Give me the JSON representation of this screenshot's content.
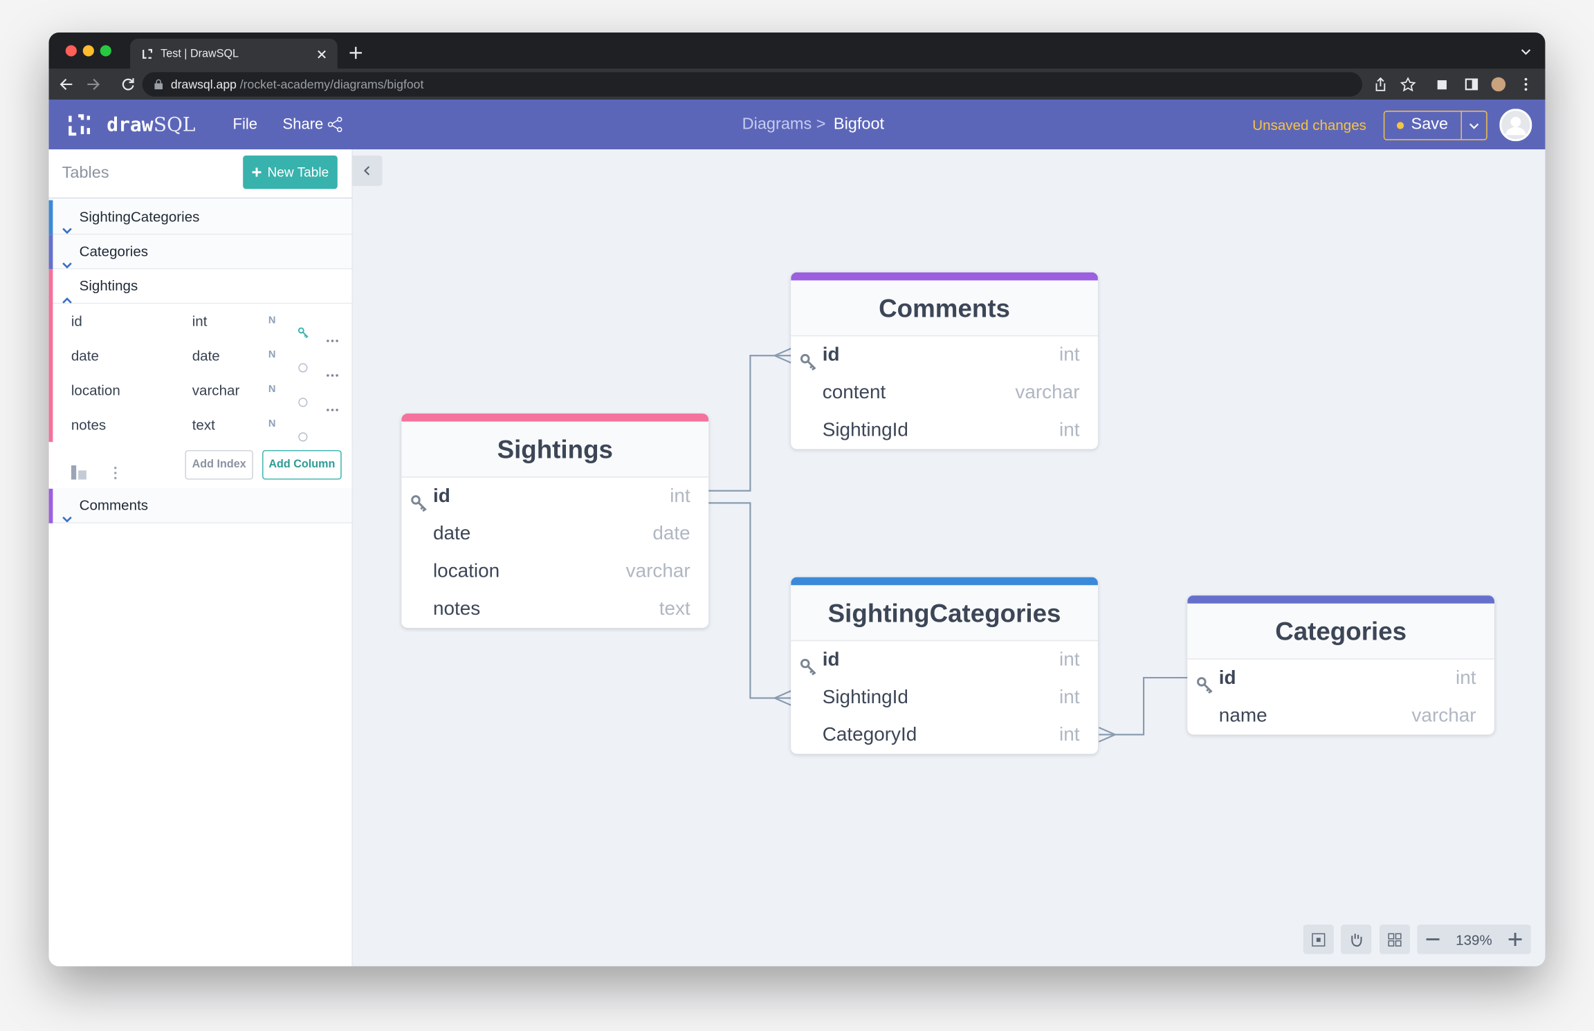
{
  "browser": {
    "tab_title": "Test | DrawSQL",
    "url_host": "drawsql.app",
    "url_path": "/rocket-academy/diagrams/bigfoot"
  },
  "app_bar": {
    "logo_bold": "draw",
    "logo_light": "SQL",
    "menu": [
      "File",
      "Share"
    ],
    "breadcrumb_parent": "Diagrams >",
    "breadcrumb_current": "Bigfoot",
    "status": "Unsaved changes",
    "save": "Save"
  },
  "sidebar": {
    "title": "Tables",
    "new_table": "New Table",
    "tables": [
      {
        "name": "SightingCategories",
        "color": "#3b8ad9",
        "expanded": false
      },
      {
        "name": "Categories",
        "color": "#6670cc",
        "expanded": false
      },
      {
        "name": "Sightings",
        "color": "#f4729c",
        "expanded": true,
        "columns": [
          {
            "name": "id",
            "type": "int",
            "nullable": "N",
            "pk": true
          },
          {
            "name": "date",
            "type": "date",
            "nullable": "N",
            "pk": false
          },
          {
            "name": "location",
            "type": "varchar",
            "nullable": "N",
            "pk": false
          },
          {
            "name": "notes",
            "type": "text",
            "nullable": "N",
            "pk": false
          }
        ],
        "add_index": "Add Index",
        "add_column": "Add Column"
      },
      {
        "name": "Comments",
        "color": "#9c5fe0",
        "expanded": false
      }
    ]
  },
  "canvas": {
    "zoom": "139%",
    "tables": [
      {
        "name": "Comments",
        "color": "#9c5fe0",
        "columns": [
          {
            "name": "id",
            "type": "int",
            "pk": true
          },
          {
            "name": "content",
            "type": "varchar",
            "pk": false
          },
          {
            "name": "SightingId",
            "type": "int",
            "pk": false
          }
        ]
      },
      {
        "name": "Sightings",
        "color": "#f4729c",
        "columns": [
          {
            "name": "id",
            "type": "int",
            "pk": true
          },
          {
            "name": "date",
            "type": "date",
            "pk": false
          },
          {
            "name": "location",
            "type": "varchar",
            "pk": false
          },
          {
            "name": "notes",
            "type": "text",
            "pk": false
          }
        ]
      },
      {
        "name": "SightingCategories",
        "color": "#3b8ad9",
        "columns": [
          {
            "name": "id",
            "type": "int",
            "pk": true
          },
          {
            "name": "SightingId",
            "type": "int",
            "pk": false
          },
          {
            "name": "CategoryId",
            "type": "int",
            "pk": false
          }
        ]
      },
      {
        "name": "Categories",
        "color": "#6670cc",
        "columns": [
          {
            "name": "id",
            "type": "int",
            "pk": true
          },
          {
            "name": "name",
            "type": "varchar",
            "pk": false
          }
        ]
      }
    ]
  }
}
